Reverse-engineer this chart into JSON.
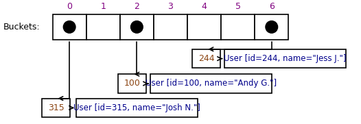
{
  "buckets_label": "Buckets:",
  "num_buckets": 7,
  "filled_buckets": [
    0,
    2,
    6
  ],
  "entries": [
    {
      "bucket": 6,
      "id": "244",
      "label": "User [id=244, name=\"Jess J.\"]"
    },
    {
      "bucket": 2,
      "id": "100",
      "label": "User [id=100, name=\"Andy G.\"]"
    },
    {
      "bucket": 0,
      "id": "315",
      "label": "User [id=315, name=\"Josh N.\"]"
    }
  ],
  "bg_color": "#ffffff",
  "box_edge_color": "#000000",
  "arrow_color": "#000000",
  "dot_color": "#000000",
  "index_color": "#800080",
  "id_color": "#8B4513",
  "label_color": "#00008B",
  "buckets_label_color": "#000000"
}
